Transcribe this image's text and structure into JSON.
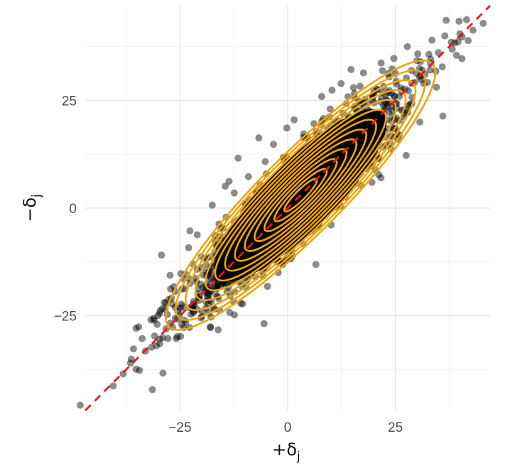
{
  "chart_data": {
    "type": "scatter",
    "title": "",
    "xlabel": {
      "main": "+δ",
      "sub": "j"
    },
    "ylabel": {
      "main": "−δ",
      "sub": "j"
    },
    "xlim": [
      -47,
      47
    ],
    "ylim": [
      -47,
      47
    ],
    "x_ticks": [
      -25,
      0,
      25
    ],
    "y_ticks": [
      -25,
      0,
      25
    ],
    "x_tick_labels": [
      "−25",
      "0",
      "25"
    ],
    "y_tick_labels": [
      "−25",
      "0",
      "25"
    ],
    "grid": true,
    "legend": "none",
    "reference_line": {
      "slope": 1,
      "intercept": 0,
      "style": "dashed",
      "color": "#e41a1c"
    },
    "points": {
      "color": "#000000",
      "opacity": 0.45,
      "sample": [
        [
          -40.5,
          -41.3
        ],
        [
          -38.2,
          -38.5
        ],
        [
          -36.5,
          -36.0
        ],
        [
          -35.8,
          -32.7
        ],
        [
          -35.2,
          -27.9
        ],
        [
          -34.6,
          -27.6
        ],
        [
          -34.4,
          -37.7
        ],
        [
          -33.8,
          -30.3
        ],
        [
          -33.0,
          -33.2
        ],
        [
          -31.6,
          -32.3
        ],
        [
          -31.1,
          -25.6
        ],
        [
          -30.3,
          -27.0
        ],
        [
          -29.7,
          -31.5
        ],
        [
          -29.7,
          -24.4
        ],
        [
          -28.3,
          -22.0
        ],
        [
          -27.6,
          -21.2
        ],
        [
          -26.8,
          -22.3
        ],
        [
          -26.1,
          -25.6
        ],
        [
          -25.5,
          -24.0
        ],
        [
          -29.3,
          -10.9
        ],
        [
          -27.3,
          -15.6
        ],
        [
          -26.1,
          -19.4
        ],
        [
          -24.0,
          -18.7
        ],
        [
          -22.7,
          -5.3
        ],
        [
          -21.0,
          -14.2
        ],
        [
          -19.8,
          -24.0
        ],
        [
          -19.0,
          -21.7
        ],
        [
          -17.7,
          -16.3
        ],
        [
          -16.5,
          -20.4
        ],
        [
          -14.3,
          -2.1
        ],
        [
          -14.5,
          5.1
        ],
        [
          -12.4,
          3.5
        ],
        [
          -11.2,
          -6.4
        ],
        [
          -9.1,
          7.3
        ],
        [
          -6.7,
          16.3
        ],
        [
          -5.2,
          10.8
        ],
        [
          -3.3,
          14.8
        ],
        [
          -0.2,
          18.6
        ],
        [
          1.5,
          20.5
        ],
        [
          3.7,
          16.4
        ],
        [
          6.1,
          19.6
        ],
        [
          7.9,
          25.9
        ],
        [
          10.3,
          27.4
        ],
        [
          12.4,
          28.9
        ],
        [
          14.9,
          18.8
        ],
        [
          17.6,
          31.4
        ],
        [
          20.8,
          27.5
        ],
        [
          21.7,
          33.7
        ],
        [
          25.0,
          31.3
        ],
        [
          27.8,
          37.5
        ],
        [
          30.2,
          35.8
        ],
        [
          32.8,
          35.7
        ],
        [
          33.5,
          39.0
        ],
        [
          35.9,
          32.8
        ],
        [
          36.5,
          40.0
        ],
        [
          38.2,
          36.9
        ],
        [
          39.8,
          43.4
        ],
        [
          41.9,
          38.9
        ],
        [
          43.0,
          41.3
        ],
        [
          45.4,
          42.9
        ],
        [
          38.0,
          38.5
        ],
        [
          40.0,
          40.5
        ],
        [
          35.0,
          36.1
        ],
        [
          34.4,
          31.8
        ],
        [
          29.5,
          29.2
        ],
        [
          30.8,
          34.0
        ],
        [
          22.8,
          24.5
        ],
        [
          19.7,
          20.8
        ],
        [
          15.8,
          17.4
        ],
        [
          13.2,
          14.0
        ],
        [
          11.0,
          10.2
        ],
        [
          8.6,
          7.1
        ],
        [
          3.9,
          5.1
        ],
        [
          1.2,
          -0.4
        ],
        [
          -3.6,
          -2.5
        ],
        [
          -6.5,
          -4.3
        ],
        [
          -8.7,
          -9.6
        ],
        [
          -13.1,
          -12.8
        ],
        [
          -16.2,
          -16.7
        ],
        [
          -19.7,
          -18.5
        ],
        [
          -22.8,
          -23.1
        ],
        [
          -25.6,
          -25.8
        ],
        [
          -27.8,
          -30.3
        ],
        [
          -30.9,
          -29.7
        ],
        [
          -35.2,
          -37.4
        ],
        [
          -1.7,
          -12.3
        ],
        [
          1.1,
          -11.1
        ],
        [
          3.6,
          -5.8
        ],
        [
          16.1,
          11.4
        ],
        [
          18.3,
          9.2
        ],
        [
          24.4,
          21.3
        ],
        [
          26.7,
          22.8
        ],
        [
          25.9,
          16.9
        ],
        [
          -11.5,
          11.6
        ],
        [
          -13.6,
          6.2
        ],
        [
          -17.5,
          0.7
        ],
        [
          -21.0,
          -6.2
        ],
        [
          -23.0,
          -9.2
        ],
        [
          -24.8,
          -15.2
        ],
        [
          9.7,
          21.2
        ],
        [
          13.6,
          24.2
        ],
        [
          16.8,
          28.3
        ]
      ]
    },
    "density_contours": {
      "color": "#f0a500",
      "levels": 13,
      "center": [
        3,
        3
      ],
      "major_sd": 17.5,
      "minor_sd": 3.6,
      "angle_deg": 45
    },
    "density_core": {
      "color": "#000000"
    }
  }
}
